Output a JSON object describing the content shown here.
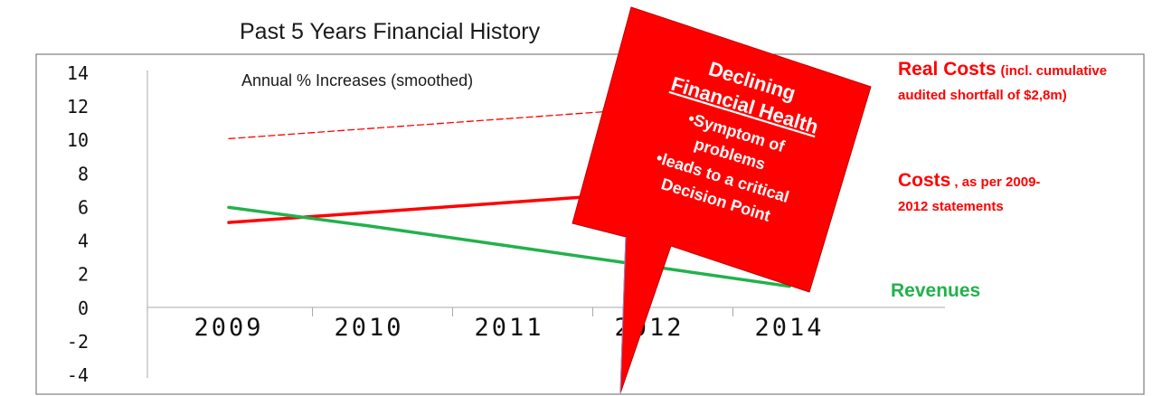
{
  "chart_data": {
    "type": "line",
    "title": "Past 5 Years Financial History",
    "subtitle": "Annual % Increases (smoothed)",
    "categories": [
      "2009",
      "2010",
      "2011",
      "2012",
      "2014"
    ],
    "ylim": [
      -4,
      14
    ],
    "yticks": [
      14,
      12,
      10,
      8,
      6,
      4,
      2,
      0,
      -2,
      -4
    ],
    "grid": false,
    "series": [
      {
        "name": "Real Costs",
        "name_suffix": "(incl. cumulative",
        "name_suffix_2": "audited shortfall of $2,8m)",
        "values": [
          10.1,
          10.7,
          11.3,
          11.9,
          12.5
        ],
        "color": "#ff0000",
        "style": "dashed"
      },
      {
        "name": "Costs",
        "name_suffix": ", as per 2009-",
        "name_suffix_2": "2012 statements",
        "values": [
          5.1,
          5.7,
          6.3,
          6.9,
          7.5
        ],
        "color": "#ff0000",
        "style": "solid"
      },
      {
        "name": "Revenues",
        "values": [
          6.0,
          4.9,
          3.7,
          2.5,
          1.3
        ],
        "color": "#22b14c",
        "style": "solid"
      }
    ],
    "annotation": {
      "heading_1": "Declining",
      "heading_2": "Financial Health",
      "bullet_1a": "•Symptom of",
      "bullet_1b": "problems",
      "bullet_2a": "•leads to a critical",
      "bullet_2b": "Decision Point",
      "fill_color": "#ff0000"
    }
  }
}
